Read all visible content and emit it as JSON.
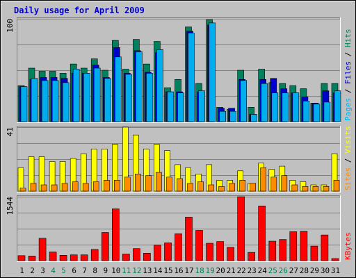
{
  "chart_data": {
    "type": "bar",
    "title": "Daily usage for April 2009",
    "categories": [
      "1",
      "2",
      "3",
      "4",
      "5",
      "6",
      "7",
      "8",
      "9",
      "10",
      "11",
      "12",
      "13",
      "14",
      "15",
      "16",
      "17",
      "18",
      "19",
      "20",
      "21",
      "22",
      "23",
      "24",
      "25",
      "26",
      "27",
      "28",
      "29",
      "30",
      "31"
    ],
    "weekend_days": [
      "4",
      "5",
      "11",
      "12",
      "18",
      "19",
      "25",
      "26"
    ],
    "panels": [
      {
        "name": "hits-files-pages",
        "max_label": "100",
        "ymax": 100,
        "right_label": [
          {
            "text": "Pages",
            "color": "#00aeef"
          },
          {
            "text": " / ",
            "color": "#000000"
          },
          {
            "text": "Files",
            "color": "#0000cc"
          },
          {
            "text": " / ",
            "color": "#000000"
          },
          {
            "text": "Hits",
            "color": "#00805c"
          }
        ],
        "series": [
          {
            "name": "Hits",
            "color": "#00805c",
            "values": [
              35,
              52,
              49,
              49,
              47,
              56,
              52,
              61,
              50,
              79,
              51,
              80,
              56,
              78,
              33,
              41,
              92,
              37,
              99,
              14,
              12,
              50,
              14,
              51,
              38,
              37,
              35,
              32,
              18,
              37,
              37
            ]
          },
          {
            "name": "Files",
            "color": "#0000cc",
            "values": [
              34,
              41,
              43,
              43,
              42,
              47,
              47,
              55,
              43,
              72,
              47,
              69,
              48,
              67,
              29,
              29,
              88,
              29,
              94,
              13,
              13,
              41,
              7,
              41,
              42,
              32,
              28,
              24,
              18,
              30,
              28
            ]
          },
          {
            "name": "Pages",
            "color": "#00aeef",
            "values": [
              34,
              42,
              40,
              40,
              38,
              51,
              47,
              52,
              42,
              63,
              46,
              68,
              47,
              70,
              29,
              28,
              86,
              30,
              96,
              10,
              10,
              40,
              7,
              37,
              28,
              28,
              28,
              20,
              17,
              19,
              30
            ]
          }
        ]
      },
      {
        "name": "visits-sites",
        "max_label": "41",
        "ymax": 41,
        "right_label": [
          {
            "text": "Sites",
            "color": "#ff8c00"
          },
          {
            "text": " / ",
            "color": "#000000"
          },
          {
            "text": "Visits",
            "color": "#ffff00"
          }
        ],
        "series": [
          {
            "name": "Visits",
            "color": "#ffff00",
            "values": [
              15,
              22,
              22,
              19,
              19,
              21,
              24,
              27,
              27,
              30,
              41,
              36,
              27,
              30,
              26,
              17,
              15,
              11,
              17,
              7,
              7,
              13,
              5,
              18,
              14,
              16,
              7,
              6,
              4,
              4,
              24
            ]
          },
          {
            "name": "Sites",
            "color": "#ff8c00",
            "values": [
              2,
              5,
              4,
              4,
              5,
              6,
              5,
              6,
              7,
              7,
              9,
              11,
              10,
              12,
              9,
              8,
              5,
              6,
              4,
              3,
              5,
              7,
              5,
              15,
              9,
              10,
              4,
              3,
              3,
              3,
              7
            ]
          }
        ]
      },
      {
        "name": "kbytes",
        "max_label": "1544",
        "ymax": 1544,
        "right_label": [
          {
            "text": "KBytes",
            "color": "#ff0000"
          }
        ],
        "series": [
          {
            "name": "KBytes",
            "color": "#ff0000",
            "values": [
              120,
              110,
              540,
              210,
              130,
              140,
              140,
              270,
              680,
              1250,
              160,
              290,
              180,
              380,
              430,
              650,
              1050,
              730,
              420,
              460,
              320,
              1544,
              200,
              1320,
              470,
              510,
              700,
              710,
              350,
              620,
              50
            ]
          }
        ]
      }
    ]
  }
}
